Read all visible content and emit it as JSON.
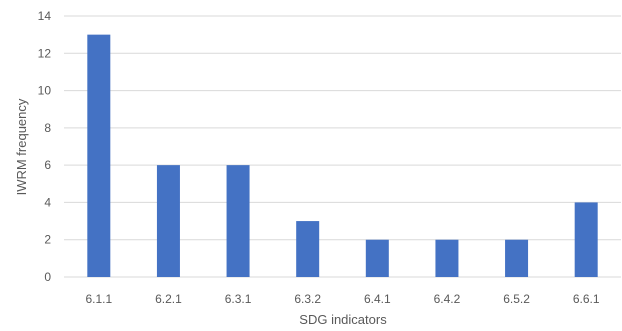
{
  "chart_data": {
    "type": "bar",
    "categories": [
      "6.1.1",
      "6.2.1",
      "6.3.1",
      "6.3.2",
      "6.4.1",
      "6.4.2",
      "6.5.2",
      "6.6.1"
    ],
    "values": [
      13,
      6,
      6,
      3,
      2,
      2,
      2,
      4
    ],
    "xlabel": "SDG indicators",
    "ylabel": "IWRM frequency",
    "ylim": [
      0,
      14
    ],
    "yticks": [
      0,
      2,
      4,
      6,
      8,
      10,
      12,
      14
    ],
    "grid": true,
    "legend": "none",
    "bar_color": "#4472c4",
    "grid_color": "#d9d9d9",
    "text_color": "#595959"
  }
}
